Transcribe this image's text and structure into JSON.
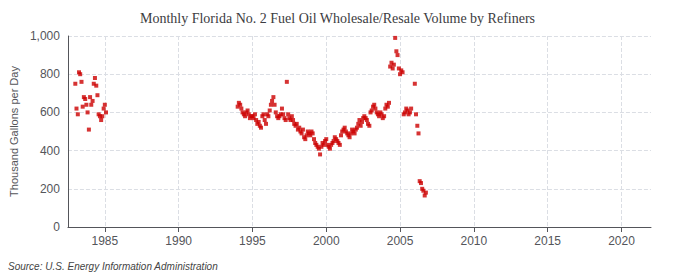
{
  "chart_data": {
    "type": "scatter",
    "title": "Monthly Florida No. 2 Fuel Oil Wholesale/Resale Volume by Refiners",
    "ylabel": "Thousand Gallons per Day",
    "annotations": [
      "Source: U.S. Energy Information Administration"
    ],
    "color": "#cc0000",
    "marker": "square",
    "grid": true,
    "xlim": [
      1982.5,
      2022
    ],
    "xticks": [
      1985,
      1990,
      1995,
      2000,
      2005,
      2010,
      2015,
      2020
    ],
    "ylim": [
      0,
      1000
    ],
    "yticks": [
      0,
      200,
      400,
      600,
      800,
      {
        "value": 1000,
        "label": "1,000"
      }
    ],
    "x": [
      1983.0,
      1983.08,
      1983.17,
      1983.25,
      1983.33,
      1983.42,
      1983.5,
      1983.58,
      1983.67,
      1983.75,
      1983.83,
      1983.92,
      1984.0,
      1984.08,
      1984.17,
      1984.25,
      1984.33,
      1984.42,
      1984.5,
      1984.58,
      1984.67,
      1984.75,
      1984.83,
      1984.92,
      1985.0,
      1985.08,
      1994.0,
      1994.08,
      1994.17,
      1994.25,
      1994.33,
      1994.42,
      1994.5,
      1994.58,
      1994.67,
      1994.75,
      1994.83,
      1994.92,
      1995.0,
      1995.08,
      1995.17,
      1995.25,
      1995.33,
      1995.42,
      1995.5,
      1995.58,
      1995.67,
      1995.75,
      1995.83,
      1995.92,
      1996.0,
      1996.08,
      1996.17,
      1996.25,
      1996.33,
      1996.42,
      1996.5,
      1996.58,
      1996.67,
      1996.75,
      1996.83,
      1996.92,
      1997.0,
      1997.08,
      1997.17,
      1997.25,
      1997.33,
      1997.42,
      1997.5,
      1997.58,
      1997.67,
      1997.75,
      1997.83,
      1997.92,
      1998.0,
      1998.08,
      1998.17,
      1998.25,
      1998.33,
      1998.42,
      1998.5,
      1998.58,
      1998.67,
      1998.75,
      1998.83,
      1998.92,
      1999.0,
      1999.08,
      1999.17,
      1999.25,
      1999.33,
      1999.42,
      1999.5,
      1999.58,
      1999.67,
      1999.75,
      1999.83,
      1999.92,
      2000.0,
      2000.08,
      2000.17,
      2000.25,
      2000.33,
      2000.42,
      2000.5,
      2000.58,
      2000.67,
      2000.75,
      2000.83,
      2000.92,
      2001.0,
      2001.08,
      2001.17,
      2001.25,
      2001.33,
      2001.42,
      2001.5,
      2001.58,
      2001.67,
      2001.75,
      2001.83,
      2001.92,
      2002.0,
      2002.08,
      2002.17,
      2002.25,
      2002.33,
      2002.42,
      2002.5,
      2002.58,
      2002.67,
      2002.75,
      2002.83,
      2002.92,
      2003.0,
      2003.08,
      2003.17,
      2003.25,
      2003.33,
      2003.42,
      2003.5,
      2003.58,
      2003.67,
      2003.75,
      2003.83,
      2003.92,
      2004.0,
      2004.08,
      2004.17,
      2004.25,
      2004.33,
      2004.42,
      2004.5,
      2004.58,
      2004.67,
      2004.75,
      2004.83,
      2004.92,
      2005.0,
      2005.08,
      2005.17,
      2005.25,
      2005.33,
      2005.42,
      2005.5,
      2005.58,
      2005.67,
      2005.75,
      2006.0,
      2006.08,
      2006.17,
      2006.25,
      2006.33,
      2006.42,
      2006.5,
      2006.58,
      2006.67,
      2006.75
    ],
    "values": [
      750,
      620,
      590,
      810,
      800,
      760,
      630,
      680,
      670,
      640,
      600,
      510,
      680,
      640,
      660,
      750,
      780,
      740,
      690,
      590,
      580,
      560,
      580,
      620,
      640,
      600,
      630,
      650,
      640,
      620,
      600,
      590,
      580,
      600,
      610,
      590,
      570,
      580,
      580,
      570,
      590,
      560,
      540,
      550,
      530,
      520,
      580,
      590,
      560,
      540,
      590,
      580,
      610,
      640,
      660,
      680,
      640,
      600,
      580,
      570,
      580,
      590,
      620,
      590,
      570,
      560,
      760,
      590,
      570,
      560,
      580,
      560,
      540,
      530,
      540,
      510,
      520,
      500,
      490,
      510,
      470,
      460,
      480,
      500,
      490,
      480,
      500,
      490,
      460,
      440,
      430,
      420,
      410,
      380,
      420,
      440,
      430,
      450,
      460,
      430,
      420,
      410,
      430,
      440,
      450,
      470,
      460,
      450,
      440,
      430,
      480,
      500,
      510,
      520,
      500,
      490,
      480,
      470,
      490,
      510,
      500,
      490,
      510,
      520,
      540,
      560,
      530,
      550,
      570,
      580,
      570,
      560,
      540,
      530,
      600,
      610,
      630,
      640,
      620,
      600,
      590,
      580,
      600,
      590,
      570,
      580,
      620,
      640,
      630,
      650,
      840,
      860,
      830,
      850,
      990,
      920,
      900,
      830,
      800,
      820,
      810,
      590,
      600,
      620,
      610,
      590,
      600,
      620,
      750,
      590,
      530,
      490,
      240,
      230,
      200,
      190,
      165,
      180
    ]
  }
}
